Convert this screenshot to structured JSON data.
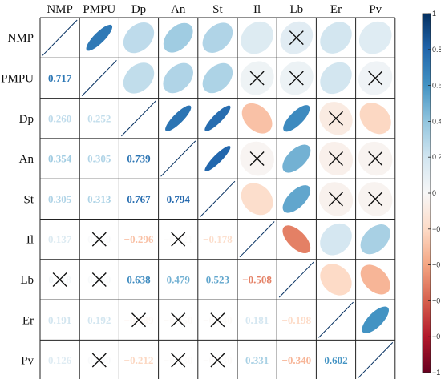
{
  "chart_data": {
    "type": "heatmap",
    "variables": [
      "NMP",
      "PMPU",
      "Dp",
      "An",
      "St",
      "Il",
      "Lb",
      "Er",
      "Pv"
    ],
    "lower_triangle_display": "numbers",
    "upper_triangle_display": "ellipses",
    "insignificant_marker": "cross",
    "correlations": [
      [
        1.0,
        0.717,
        0.26,
        0.354,
        0.305,
        0.137,
        0.118,
        0.191,
        0.126
      ],
      [
        0.717,
        1.0,
        0.252,
        0.305,
        0.313,
        0.05,
        0.06,
        0.192,
        0.04
      ],
      [
        0.26,
        0.252,
        1.0,
        0.739,
        0.767,
        -0.296,
        0.638,
        -0.089,
        -0.212
      ],
      [
        0.354,
        0.305,
        0.739,
        1.0,
        0.794,
        -0.021,
        0.479,
        -0.05,
        -0.03
      ],
      [
        0.305,
        0.313,
        0.767,
        0.794,
        1.0,
        -0.178,
        0.523,
        -0.04,
        -0.03
      ],
      [
        0.137,
        0.05,
        -0.296,
        -0.021,
        -0.178,
        1.0,
        -0.508,
        0.181,
        0.331
      ],
      [
        0.118,
        0.06,
        0.638,
        0.479,
        0.523,
        -0.508,
        1.0,
        -0.198,
        -0.34
      ],
      [
        0.191,
        0.192,
        -0.089,
        -0.05,
        -0.04,
        0.181,
        -0.198,
        1.0,
        0.602
      ],
      [
        0.126,
        0.04,
        -0.212,
        -0.03,
        -0.03,
        0.331,
        -0.34,
        0.602,
        1.0
      ]
    ],
    "insignificant_pairs": [
      [
        "NMP",
        "Lb"
      ],
      [
        "PMPU",
        "Il"
      ],
      [
        "PMPU",
        "Lb"
      ],
      [
        "PMPU",
        "Pv"
      ],
      [
        "Dp",
        "Er"
      ],
      [
        "An",
        "Il"
      ],
      [
        "An",
        "Er"
      ],
      [
        "An",
        "Pv"
      ],
      [
        "St",
        "Er"
      ],
      [
        "St",
        "Pv"
      ]
    ],
    "colorbar": {
      "range": [
        -1,
        1
      ],
      "ticks": [
        "1",
        "0.8",
        "0.6",
        "0.4",
        "0.2",
        "0",
        "−0.2",
        "−0.4",
        "−0.6",
        "−0.8",
        "−1"
      ],
      "colors": {
        "strong_positive": "#053061",
        "positive": "#2166AC",
        "mid_positive": "#4393C3",
        "weak_positive": "#92C5DE",
        "faint_positive": "#D1E5F0",
        "zero": "#F7F7F7",
        "faint_negative": "#FDDBC7",
        "weak_negative": "#F4A582",
        "mid_negative": "#D6604D",
        "negative": "#B2182B",
        "strong_negative": "#67001F"
      }
    }
  }
}
